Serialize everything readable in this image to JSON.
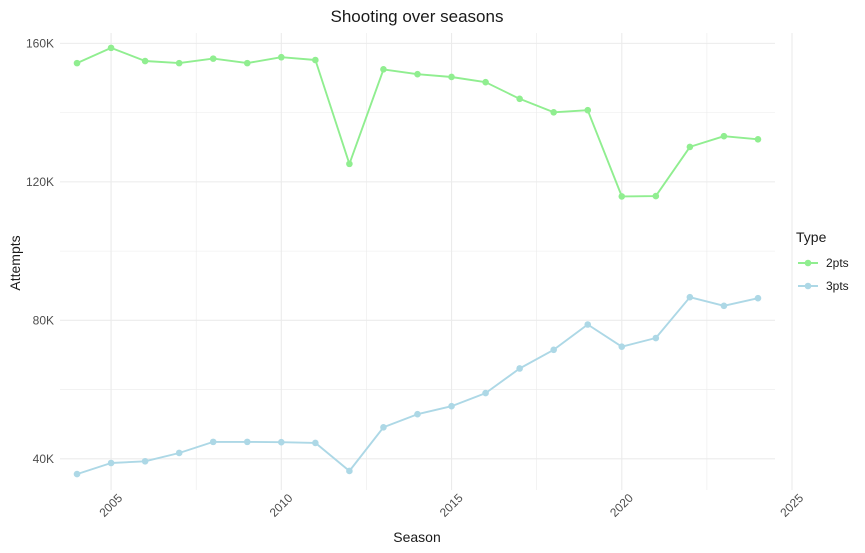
{
  "chart_data": {
    "type": "line",
    "title": "Shooting over seasons",
    "xlabel": "Season",
    "ylabel": "Attempts",
    "x": [
      2004,
      2005,
      2006,
      2007,
      2008,
      2009,
      2010,
      2011,
      2012,
      2013,
      2014,
      2015,
      2016,
      2017,
      2018,
      2019,
      2020,
      2021,
      2022,
      2023,
      2024
    ],
    "series": [
      {
        "name": "2pts",
        "color": "#90EE90",
        "values": [
          154300,
          158700,
          154900,
          154300,
          155600,
          154300,
          156000,
          155200,
          125200,
          152500,
          151100,
          150300,
          148800,
          144000,
          140100,
          140700,
          115800,
          115900,
          130100,
          133200,
          132300
        ]
      },
      {
        "name": "3pts",
        "color": "#ADD8E6",
        "values": [
          35600,
          38800,
          39300,
          41700,
          44900,
          44900,
          44800,
          44600,
          36500,
          49100,
          52900,
          55200,
          59000,
          66100,
          71500,
          78800,
          72400,
          74900,
          86700,
          84200,
          86400
        ]
      }
    ],
    "xlim": [
      2003.5,
      2024.5
    ],
    "ylim": [
      31000,
      163000
    ],
    "x_ticks": [
      2005,
      2010,
      2015,
      2020,
      2025
    ],
    "x_tick_labels": [
      "2005",
      "2010",
      "2015",
      "2020",
      "2025"
    ],
    "y_ticks": [
      40000,
      80000,
      120000,
      160000
    ],
    "y_tick_labels": [
      "40K",
      "80K",
      "120K",
      "160K"
    ],
    "legend": {
      "title": "Type",
      "position": "right",
      "entries": [
        "2pts",
        "3pts"
      ]
    },
    "grid": true,
    "gridline_color": "#ebebeb",
    "background_color": "#ffffff"
  }
}
